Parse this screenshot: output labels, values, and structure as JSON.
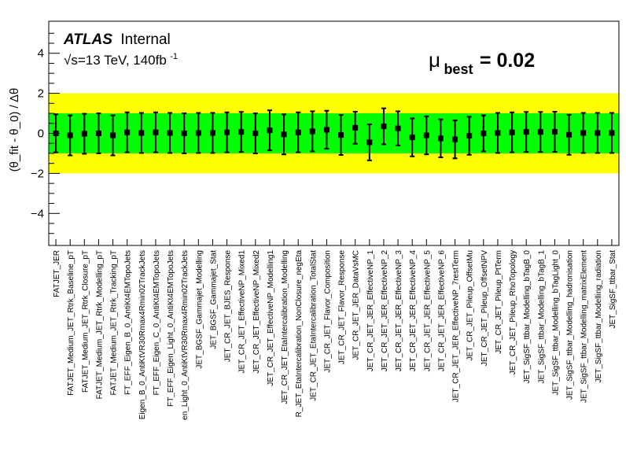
{
  "chart_data": {
    "type": "scatter",
    "title": "",
    "ylabel": "(θ_fit - θ_0) / Δθ",
    "ylim": [
      -5.6,
      5.6
    ],
    "yticks": [
      -4,
      -2,
      0,
      2,
      4
    ],
    "bands": [
      {
        "name": "±2σ",
        "lo": -2,
        "hi": 2,
        "color": "#ffff00"
      },
      {
        "name": "±1σ",
        "lo": -1,
        "hi": 1,
        "color": "#00ff00"
      }
    ],
    "annotations": {
      "atlas": "ATLAS",
      "internal": "Internal",
      "energy_sqrt": "√s=13 TeV, 140fb",
      "energy_sup": "-1",
      "mu_symbol": "μ",
      "mu_sub": "best",
      "mu_value": "= 0.02"
    },
    "categories": [
      "FATJET_JER",
      "FATJET_Medium_JET_Rtrk_Baseline_pT",
      "FATJET_Medium_JET_Rtrk_Closure_pT",
      "FATJET_Medium_JET_Rtrk_Modelling_pT",
      "FATJET_Medium_JET_Rtrk_Tracking_pT",
      "FT_EFF_Eigen_B_0_AntiKt4EMTopoJets",
      "Eigen_B_0_AntiKtVR30Rmax4Rmin02TrackJets",
      "FT_EFF_Eigen_C_0_AntiKt4EMTopoJets",
      "FT_EFF_Eigen_Light_0_AntiKt4EMTopoJets",
      "en_Light_0_AntiKtVR30Rmax4Rmin02TrackJets",
      "JET_BGSF_Gammajet_Modelling",
      "JET_BGSF_Gammajet_Stat",
      "JET_CR_JET_BJES_Response",
      "JET_CR_JET_EffectiveNP_Mixed1",
      "JET_CR_JET_EffectiveNP_Mixed2",
      "JET_CR_JET_EffectiveNP_Modelling1",
      "JET_CR_JET_EtaIntercalibration_Modelling",
      "R_JET_EtaIntercalibration_NonClosure_negEta",
      "JET_CR_JET_EtaIntercalibration_TotalStat",
      "JET_CR_JET_Flavor_Composition",
      "JET_CR_JET_Flavor_Response",
      "JET_CR_JET_JER_DataVsMC",
      "JET_CR_JET_JER_EffectiveNP_1",
      "JET_CR_JET_JER_EffectiveNP_2",
      "JET_CR_JET_JER_EffectiveNP_3",
      "JET_CR_JET_JER_EffectiveNP_4",
      "JET_CR_JET_JER_EffectiveNP_5",
      "JET_CR_JET_JER_EffectiveNP_6",
      "JET_CR_JET_JER_EffectiveNP_7restTerm",
      "JET_CR_JET_Pileup_OffsetMu",
      "JET_CR_JET_Pileup_OffsetNPV",
      "JET_CR_JET_Pileup_PtTerm",
      "JET_CR_JET_Pileup_RhoTopology",
      "JET_SigSF_ttbar_Modelling_bTagB_0",
      "JET_SigSF_ttbar_Modelling_bTagB_1",
      "JET_SigSF_ttbar_Modelling_bTagLight_0",
      "JET_SigSF_ttbar_Modelling_hadronisation",
      "JET_SigSF_ttbar_Modelling_matrixElement",
      "JET_SigSF_ttbar_Modelling_radiation",
      "JET_SigSF_ttbar_Stat"
    ],
    "values": [
      0.0,
      -0.1,
      -0.02,
      0.0,
      -0.1,
      0.05,
      0.02,
      0.05,
      0.02,
      0.0,
      0.02,
      0.02,
      0.05,
      0.07,
      0.0,
      0.15,
      -0.05,
      0.05,
      0.1,
      0.18,
      -0.08,
      0.28,
      -0.45,
      0.35,
      0.25,
      -0.2,
      -0.1,
      -0.25,
      -0.3,
      -0.12,
      0.0,
      0.02,
      0.05,
      0.07,
      0.07,
      0.08,
      -0.07,
      0.02,
      0.02,
      0.02
    ],
    "err_hi": [
      0.95,
      1.0,
      1.0,
      1.0,
      1.0,
      1.0,
      1.0,
      1.0,
      1.0,
      1.0,
      1.0,
      1.0,
      1.0,
      1.0,
      1.0,
      1.0,
      1.0,
      1.0,
      1.0,
      0.95,
      1.0,
      0.8,
      0.9,
      0.9,
      0.85,
      0.95,
      0.95,
      0.95,
      0.95,
      0.95,
      0.9,
      1.0,
      1.0,
      1.0,
      1.0,
      1.0,
      1.0,
      1.0,
      1.0,
      1.0
    ],
    "err_lo": [
      0.95,
      1.0,
      1.0,
      1.0,
      1.0,
      1.0,
      1.0,
      1.0,
      1.0,
      1.0,
      1.0,
      1.0,
      1.0,
      1.0,
      1.0,
      1.0,
      1.0,
      1.0,
      1.0,
      0.95,
      1.0,
      0.8,
      0.9,
      0.9,
      0.85,
      0.95,
      0.95,
      0.95,
      0.95,
      0.95,
      0.9,
      1.0,
      1.0,
      1.0,
      1.0,
      1.0,
      1.0,
      1.0,
      1.0,
      1.0
    ]
  }
}
